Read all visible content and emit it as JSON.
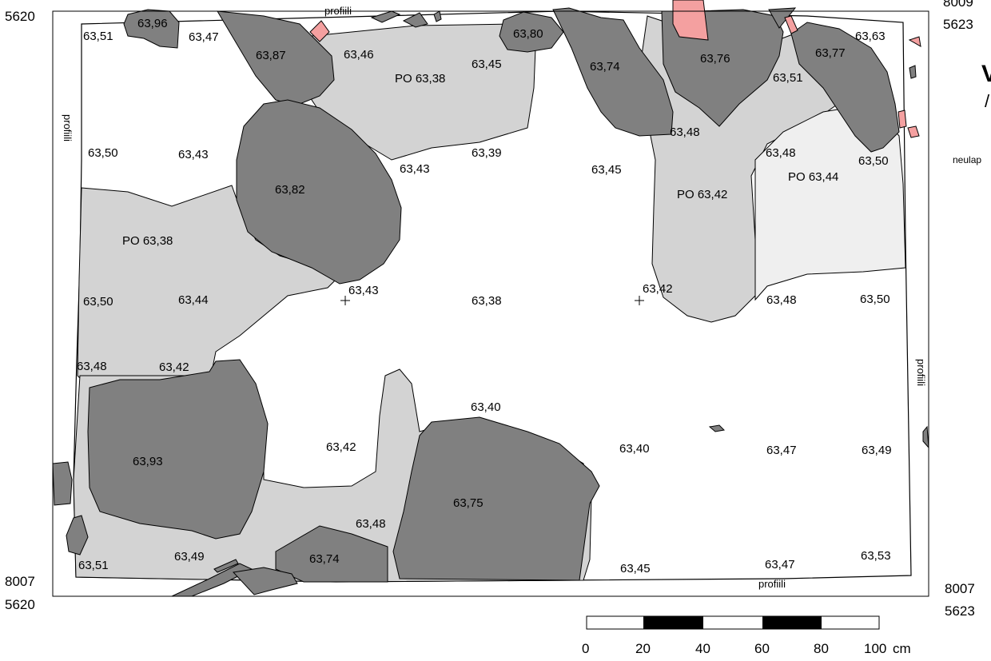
{
  "corners": {
    "top_left": "5620",
    "top_right_line1": "8009",
    "top_right_line2": "5623",
    "bottom_left_line1": "8007",
    "bottom_left_line2": "5620",
    "bottom_right_line1": "8007",
    "bottom_right_line2": "5623"
  },
  "profile_labels": {
    "top": "profiili",
    "left": "profiili",
    "right": "profiili",
    "bottom": "profiili"
  },
  "side_note": "neulap",
  "elevations": [
    "63,51",
    "63,96",
    "63,47",
    "63,87",
    "63,46",
    "63,80",
    "63,45",
    "63,74",
    "63,76",
    "63,63",
    "63,77",
    "63,51",
    "63,50",
    "63,43",
    "63,43",
    "63,39",
    "63,45",
    "63,48",
    "63,48",
    "63,50",
    "63,82",
    "63,50",
    "63,44",
    "63,43",
    "63,38",
    "63,42",
    "63,48",
    "63,50",
    "63,48",
    "63,42",
    "63,40",
    "63,93",
    "63,42",
    "63,40",
    "63,47",
    "63,49",
    "63,75",
    "63,48",
    "63,51",
    "63,49",
    "63,74",
    "63,45",
    "63,47",
    "63,53"
  ],
  "po_labels": [
    "PO 63,38",
    "PO 63,38",
    "PO 63,42",
    "PO 63,44"
  ],
  "scale_bar": {
    "ticks": [
      "0",
      "20",
      "40",
      "60",
      "80",
      "100"
    ],
    "unit": "cm"
  }
}
